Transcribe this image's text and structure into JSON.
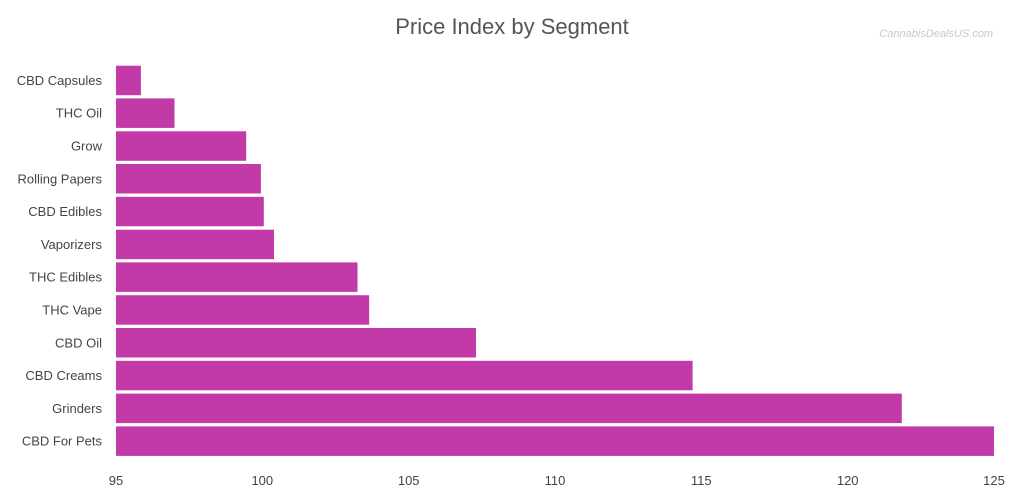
{
  "watermark": "CannabisDealsUS.com",
  "chart_data": {
    "type": "bar",
    "orientation": "horizontal",
    "title": "Price Index by Segment",
    "xlabel": "",
    "ylabel": "",
    "categories": [
      "CBD Capsules",
      "THC Oil",
      "Grow",
      "Rolling Papers",
      "CBD Edibles",
      "Vaporizers",
      "THC Edibles",
      "THC Vape",
      "CBD Oil",
      "CBD Creams",
      "Grinders",
      "CBD For Pets"
    ],
    "values": [
      95.85,
      97.0,
      99.45,
      99.95,
      100.05,
      100.4,
      103.25,
      103.65,
      107.3,
      114.7,
      121.85,
      125.0
    ],
    "xlim": [
      95,
      125
    ],
    "xticks": [
      95,
      100,
      105,
      110,
      115,
      120,
      125
    ],
    "grid": false,
    "legend": "none",
    "bar_color": "#c23aa8"
  }
}
